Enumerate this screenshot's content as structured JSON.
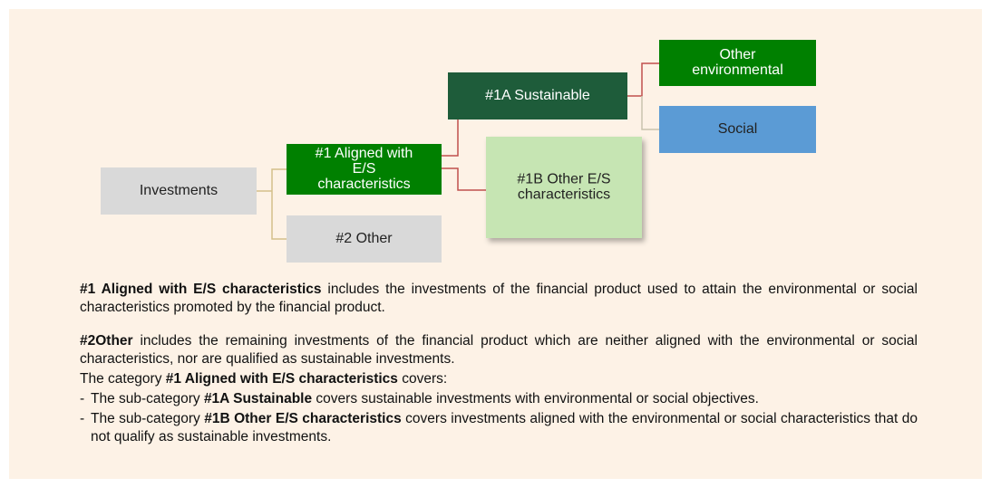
{
  "nodes": [
    {
      "lines": [
        "Investments"
      ]
    },
    {
      "lines": [
        "#1 Aligned with",
        "E/S",
        "characteristics"
      ]
    },
    {
      "lines": [
        "#2 Other"
      ]
    },
    {
      "lines": [
        "#1A Sustainable"
      ]
    },
    {
      "lines": [
        "#1B Other E/S",
        "characteristics"
      ]
    },
    {
      "lines": [
        "Other",
        "environmental"
      ]
    },
    {
      "lines": [
        "Social"
      ]
    }
  ],
  "paragraphs": [
    {
      "segments": [
        {
          "text": "#1 Aligned with E/S characteristics",
          "bold": true
        },
        {
          "text": " includes the investments of the financial product used to attain the environmental or social characteristics promoted by the financial product.",
          "bold": false
        }
      ]
    },
    {
      "segments": [
        {
          "text": "#2Other",
          "bold": true
        },
        {
          "text": " includes the remaining investments of the financial product which are neither aligned with the environmental or social characteristics, nor are qualified as sustainable investments.",
          "bold": false
        }
      ]
    },
    {
      "segments": [
        {
          "text": "The category ",
          "bold": false
        },
        {
          "text": "#1 Aligned with E/S characteristics",
          "bold": true
        },
        {
          "text": " covers:",
          "bold": false
        }
      ]
    }
  ],
  "bullets": [
    {
      "marker": "-",
      "segments": [
        {
          "text": "The sub-category ",
          "bold": false
        },
        {
          "text": "#1A Sustainable",
          "bold": true
        },
        {
          "text": " covers sustainable investments with environmental or social objectives.",
          "bold": false
        }
      ]
    },
    {
      "marker": "-",
      "segments": [
        {
          "text": "The sub-category ",
          "bold": false
        },
        {
          "text": "#1B Other E/S characteristics",
          "bold": true
        },
        {
          "text": " covers investments aligned with the environmental or social characteristics that do not qualify as sustainable investments.",
          "bold": false
        }
      ]
    }
  ]
}
